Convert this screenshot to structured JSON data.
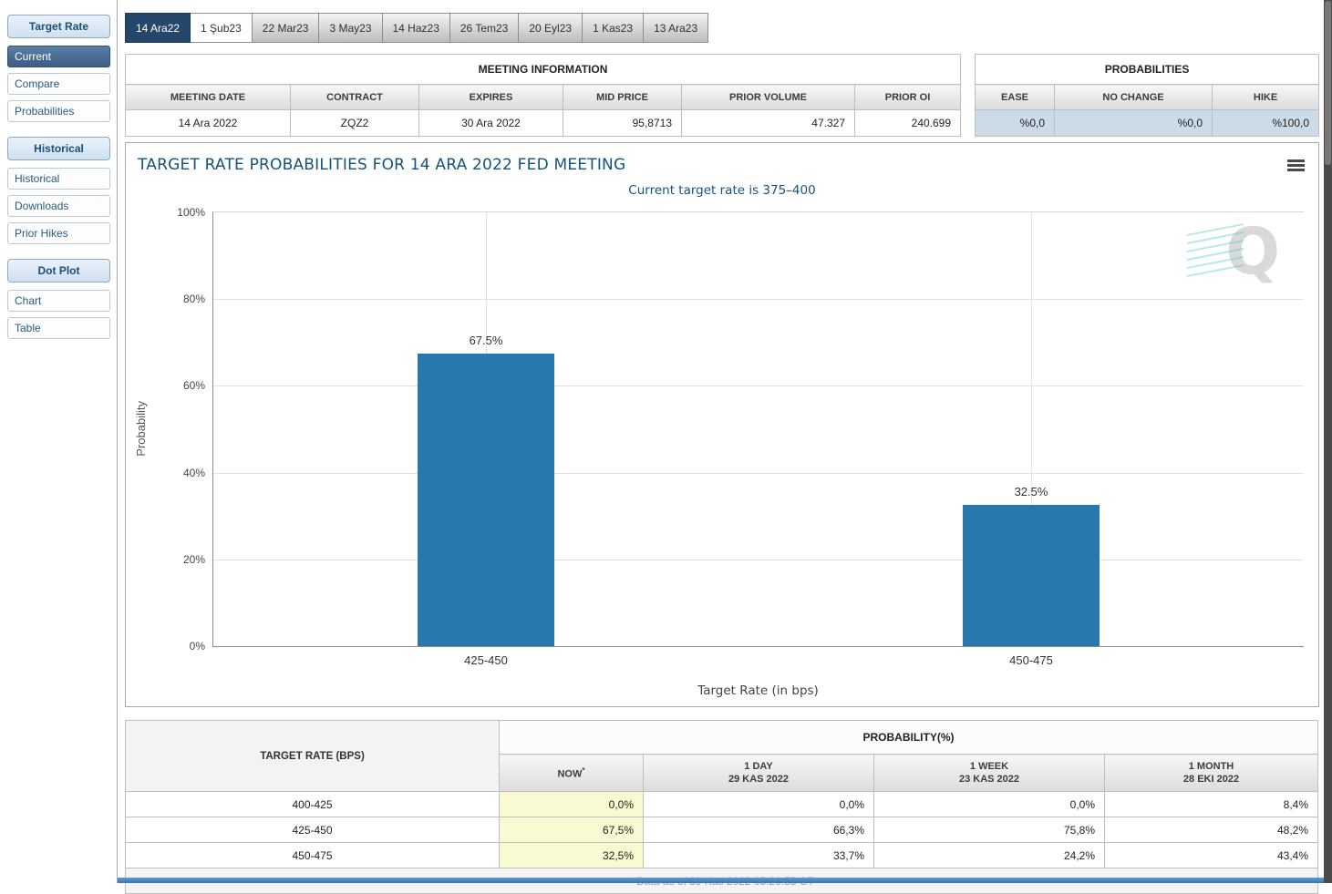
{
  "colors": {
    "bar": "#2878ad",
    "active_tab": "#24476b",
    "selected_sidebar_item": "#4a6b8f",
    "now_highlight": "#fafad2",
    "probability_row_highlight": "#ccdbe8"
  },
  "sidebar": {
    "sections": [
      {
        "header": "Target Rate",
        "items": [
          {
            "label": "Current",
            "selected": true
          },
          {
            "label": "Compare",
            "selected": false
          },
          {
            "label": "Probabilities",
            "selected": false
          }
        ]
      },
      {
        "header": "Historical",
        "items": [
          {
            "label": "Historical",
            "selected": false
          },
          {
            "label": "Downloads",
            "selected": false
          },
          {
            "label": "Prior Hikes",
            "selected": false
          }
        ]
      },
      {
        "header": "Dot Plot",
        "items": [
          {
            "label": "Chart",
            "selected": false
          },
          {
            "label": "Table",
            "selected": false
          }
        ]
      }
    ]
  },
  "tabs": [
    {
      "label": "14 Ara22",
      "active": true
    },
    {
      "label": "1 Şub23",
      "active": false
    },
    {
      "label": "22 Mar23",
      "active": false
    },
    {
      "label": "3 May23",
      "active": false
    },
    {
      "label": "14 Haz23",
      "active": false
    },
    {
      "label": "26 Tem23",
      "active": false
    },
    {
      "label": "20 Eyl23",
      "active": false
    },
    {
      "label": "1 Kas23",
      "active": false
    },
    {
      "label": "13 Ara23",
      "active": false
    }
  ],
  "meeting_info": {
    "title": "MEETING INFORMATION",
    "headers": [
      "MEETING DATE",
      "CONTRACT",
      "EXPIRES",
      "MID PRICE",
      "PRIOR VOLUME",
      "PRIOR OI"
    ],
    "row": [
      "14 Ara 2022",
      "ZQZ2",
      "30 Ara 2022",
      "95,8713",
      "47.327",
      "240.699"
    ]
  },
  "probabilities_panel": {
    "title": "PROBABILITIES",
    "headers": [
      "EASE",
      "NO CHANGE",
      "HIKE"
    ],
    "row": [
      "%0,0",
      "%0,0",
      "%100,0"
    ]
  },
  "chart_data": {
    "type": "bar",
    "title": "TARGET RATE PROBABILITIES FOR 14 ARA 2022 FED MEETING",
    "subtitle": "Current target rate is 375–400",
    "categories": [
      "425-450",
      "450-475"
    ],
    "values": [
      67.5,
      32.5
    ],
    "value_labels": [
      "67.5%",
      "32.5%"
    ],
    "xlabel": "Target Rate (in bps)",
    "ylabel": "Probability",
    "ylim": [
      0,
      100
    ],
    "yticks": [
      "0%",
      "20%",
      "40%",
      "60%",
      "80%",
      "100%"
    ],
    "bar_color": "#2878ad",
    "grid": true,
    "legend": "none",
    "watermark": "Q"
  },
  "bottom_table": {
    "rate_header": "TARGET RATE (BPS)",
    "group_header": "PROBABILITY(%)",
    "sub_headers": [
      {
        "line1": "NOW",
        "sup": "*",
        "line2": ""
      },
      {
        "line1": "1 DAY",
        "line2": "29 KAS 2022"
      },
      {
        "line1": "1 WEEK",
        "line2": "23 KAS 2022"
      },
      {
        "line1": "1 MONTH",
        "line2": "28 EKI 2022"
      }
    ],
    "rows": [
      [
        "400-425",
        "0,0%",
        "0,0%",
        "0,0%",
        "8,4%"
      ],
      [
        "425-450",
        "67,5%",
        "66,3%",
        "75,8%",
        "48,2%"
      ],
      [
        "450-475",
        "32,5%",
        "33,7%",
        "24,2%",
        "43,4%"
      ]
    ],
    "footer": "* Data as of 30 Kas 2022 05:20:55 CT"
  }
}
